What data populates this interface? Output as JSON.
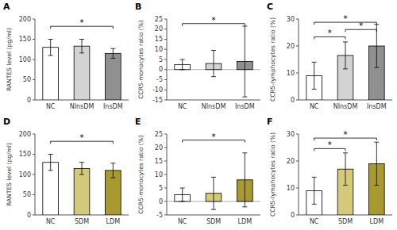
{
  "chart_data": [
    {
      "type": "bar",
      "title": "A",
      "ylabel": "RANTES level (pg/ml)",
      "categories": [
        "NC",
        "NInsDM",
        "InsDM"
      ],
      "colors": [
        "#ffffff",
        "#d3d3d3",
        "#909090"
      ],
      "values": [
        130,
        133,
        115
      ],
      "errors": [
        20,
        17,
        12
      ],
      "ylim": [
        0,
        200
      ],
      "yticks": [
        0,
        50,
        100,
        150,
        200
      ],
      "annotations": [
        {
          "text": "*",
          "between": [
            "NC",
            "InsDM"
          ]
        }
      ]
    },
    {
      "type": "bar",
      "title": "B",
      "ylabel": "CCR5-monocytes ratio (%)",
      "categories": [
        "NC",
        "NInsDM",
        "InsDM"
      ],
      "colors": [
        "#ffffff",
        "#d3d3d3",
        "#909090"
      ],
      "values": [
        2.5,
        3.0,
        4.0
      ],
      "errors": [
        2.5,
        6.5,
        17.5
      ],
      "ylim": [
        -15,
        25
      ],
      "yticks": [
        -15,
        -10,
        -5,
        0,
        5,
        10,
        15,
        20,
        25
      ],
      "annotations": [
        {
          "text": "*",
          "between": [
            "NC",
            "InsDM"
          ]
        }
      ]
    },
    {
      "type": "bar",
      "title": "C",
      "ylabel": "CCR5-lymphocytes ratio (%)",
      "categories": [
        "NC",
        "NInsDM",
        "InsDM"
      ],
      "colors": [
        "#ffffff",
        "#d3d3d3",
        "#909090"
      ],
      "values": [
        9,
        16.5,
        20
      ],
      "errors": [
        5,
        5,
        8
      ],
      "ylim": [
        0,
        30
      ],
      "yticks": [
        0,
        10,
        20,
        30
      ],
      "annotations": [
        {
          "text": "*",
          "between": [
            "NC",
            "NInsDM"
          ]
        },
        {
          "text": "*",
          "between": [
            "NInsDM",
            "InsDM"
          ]
        },
        {
          "text": "*",
          "between": [
            "NC",
            "InsDM"
          ]
        }
      ]
    },
    {
      "type": "bar",
      "title": "D",
      "ylabel": "RANTES level (pg/ml)",
      "categories": [
        "NC",
        "SDM",
        "LDM"
      ],
      "colors": [
        "#ffffff",
        "#d4c97a",
        "#a89a30"
      ],
      "values": [
        130,
        115,
        110
      ],
      "errors": [
        20,
        15,
        18
      ],
      "ylim": [
        0,
        200
      ],
      "yticks": [
        0,
        50,
        100,
        150,
        200
      ],
      "annotations": [
        {
          "text": "*",
          "between": [
            "NC",
            "LDM"
          ]
        }
      ]
    },
    {
      "type": "bar",
      "title": "E",
      "ylabel": "CCR5-monocytes ratio (%)",
      "categories": [
        "NC",
        "SDM",
        "LDM"
      ],
      "colors": [
        "#ffffff",
        "#d4c97a",
        "#a89a30"
      ],
      "values": [
        2.5,
        3.0,
        8.0
      ],
      "errors": [
        2.5,
        6.0,
        10.0
      ],
      "ylim": [
        -5,
        25
      ],
      "yticks": [
        -5,
        0,
        5,
        10,
        15,
        20,
        25
      ],
      "annotations": [
        {
          "text": "*",
          "between": [
            "NC",
            "LDM"
          ]
        }
      ]
    },
    {
      "type": "bar",
      "title": "F",
      "ylabel": "CCR5-lymphocytes ratio (%)",
      "categories": [
        "NC",
        "SDM",
        "LDM"
      ],
      "colors": [
        "#ffffff",
        "#d4c97a",
        "#a89a30"
      ],
      "values": [
        9,
        17,
        19
      ],
      "errors": [
        5,
        6,
        8
      ],
      "ylim": [
        0,
        30
      ],
      "yticks": [
        0,
        10,
        20,
        30
      ],
      "annotations": [
        {
          "text": "*",
          "between": [
            "NC",
            "SDM"
          ]
        },
        {
          "text": "*",
          "between": [
            "NC",
            "LDM"
          ]
        }
      ]
    }
  ]
}
